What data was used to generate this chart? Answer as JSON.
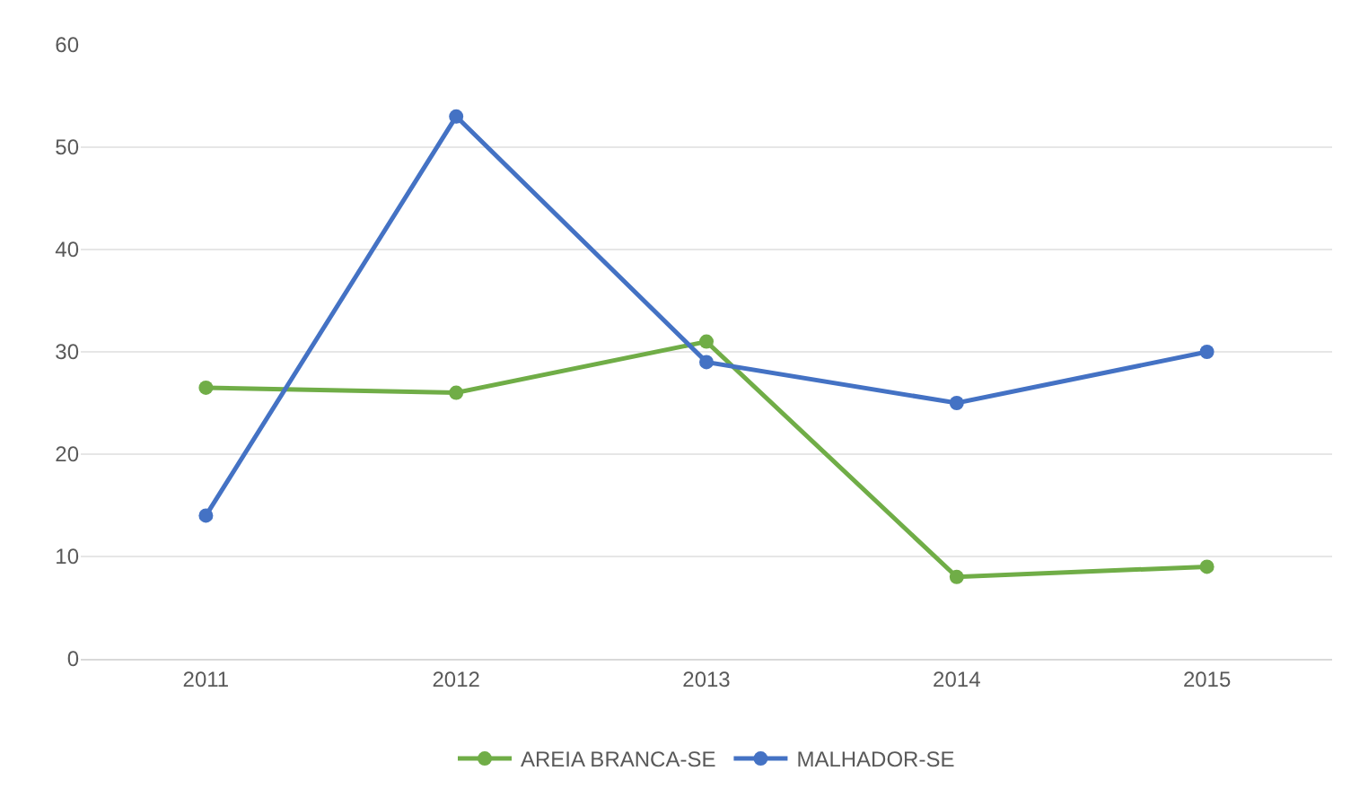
{
  "chart_data": {
    "type": "line",
    "categories": [
      "2011",
      "2012",
      "2013",
      "2014",
      "2015"
    ],
    "series": [
      {
        "name": "AREIA BRANCA-SE",
        "color": "#70ad47",
        "values": [
          26.5,
          26,
          31,
          8,
          9
        ]
      },
      {
        "name": "MALHADOR-SE",
        "color": "#4472c4",
        "values": [
          14,
          53,
          29,
          25,
          30
        ]
      }
    ],
    "ylim": [
      0,
      60
    ],
    "yticks": [
      0,
      10,
      20,
      30,
      40,
      50,
      60
    ],
    "grid": "y",
    "legend": "bottom",
    "marker": "circle",
    "line_style": "solid"
  }
}
